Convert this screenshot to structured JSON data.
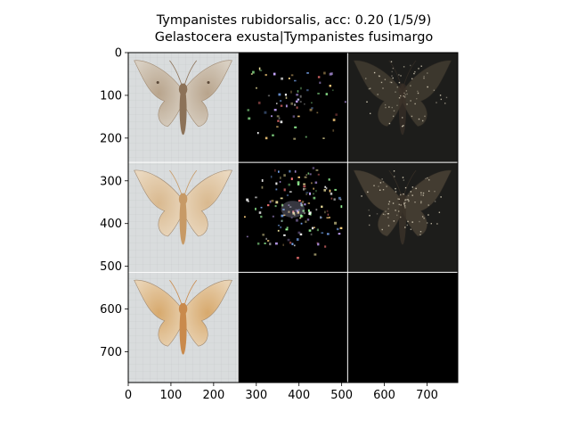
{
  "chart_data": {
    "type": "image-grid",
    "title": "Tympanistes rubidorsalis, acc: 0.20 (1/5/9)",
    "subtitle": "Gelastocera exusta|Tympanistes fusimargo",
    "xticks": [
      0,
      100,
      200,
      300,
      400,
      500,
      600,
      700
    ],
    "yticks": [
      0,
      100,
      200,
      300,
      400,
      500,
      600,
      700
    ],
    "xlim": [
      0,
      772
    ],
    "ylim": [
      772,
      0
    ],
    "grid": {
      "rows": 3,
      "cols": 3,
      "cell_size": 257
    },
    "panels": [
      {
        "row": 0,
        "col": 0,
        "kind": "moth-photo",
        "variant": "grey-brown"
      },
      {
        "row": 0,
        "col": 1,
        "kind": "saliency-map",
        "intensity": 0.12
      },
      {
        "row": 0,
        "col": 2,
        "kind": "masked-photo",
        "intensity": 0.35
      },
      {
        "row": 1,
        "col": 0,
        "kind": "moth-photo",
        "variant": "pale-tan"
      },
      {
        "row": 1,
        "col": 1,
        "kind": "saliency-map",
        "intensity": 0.45
      },
      {
        "row": 1,
        "col": 2,
        "kind": "masked-photo",
        "intensity": 0.5
      },
      {
        "row": 2,
        "col": 0,
        "kind": "moth-photo",
        "variant": "orange-tan"
      },
      {
        "row": 2,
        "col": 1,
        "kind": "black",
        "intensity": 0
      },
      {
        "row": 2,
        "col": 2,
        "kind": "black",
        "intensity": 0
      }
    ]
  }
}
